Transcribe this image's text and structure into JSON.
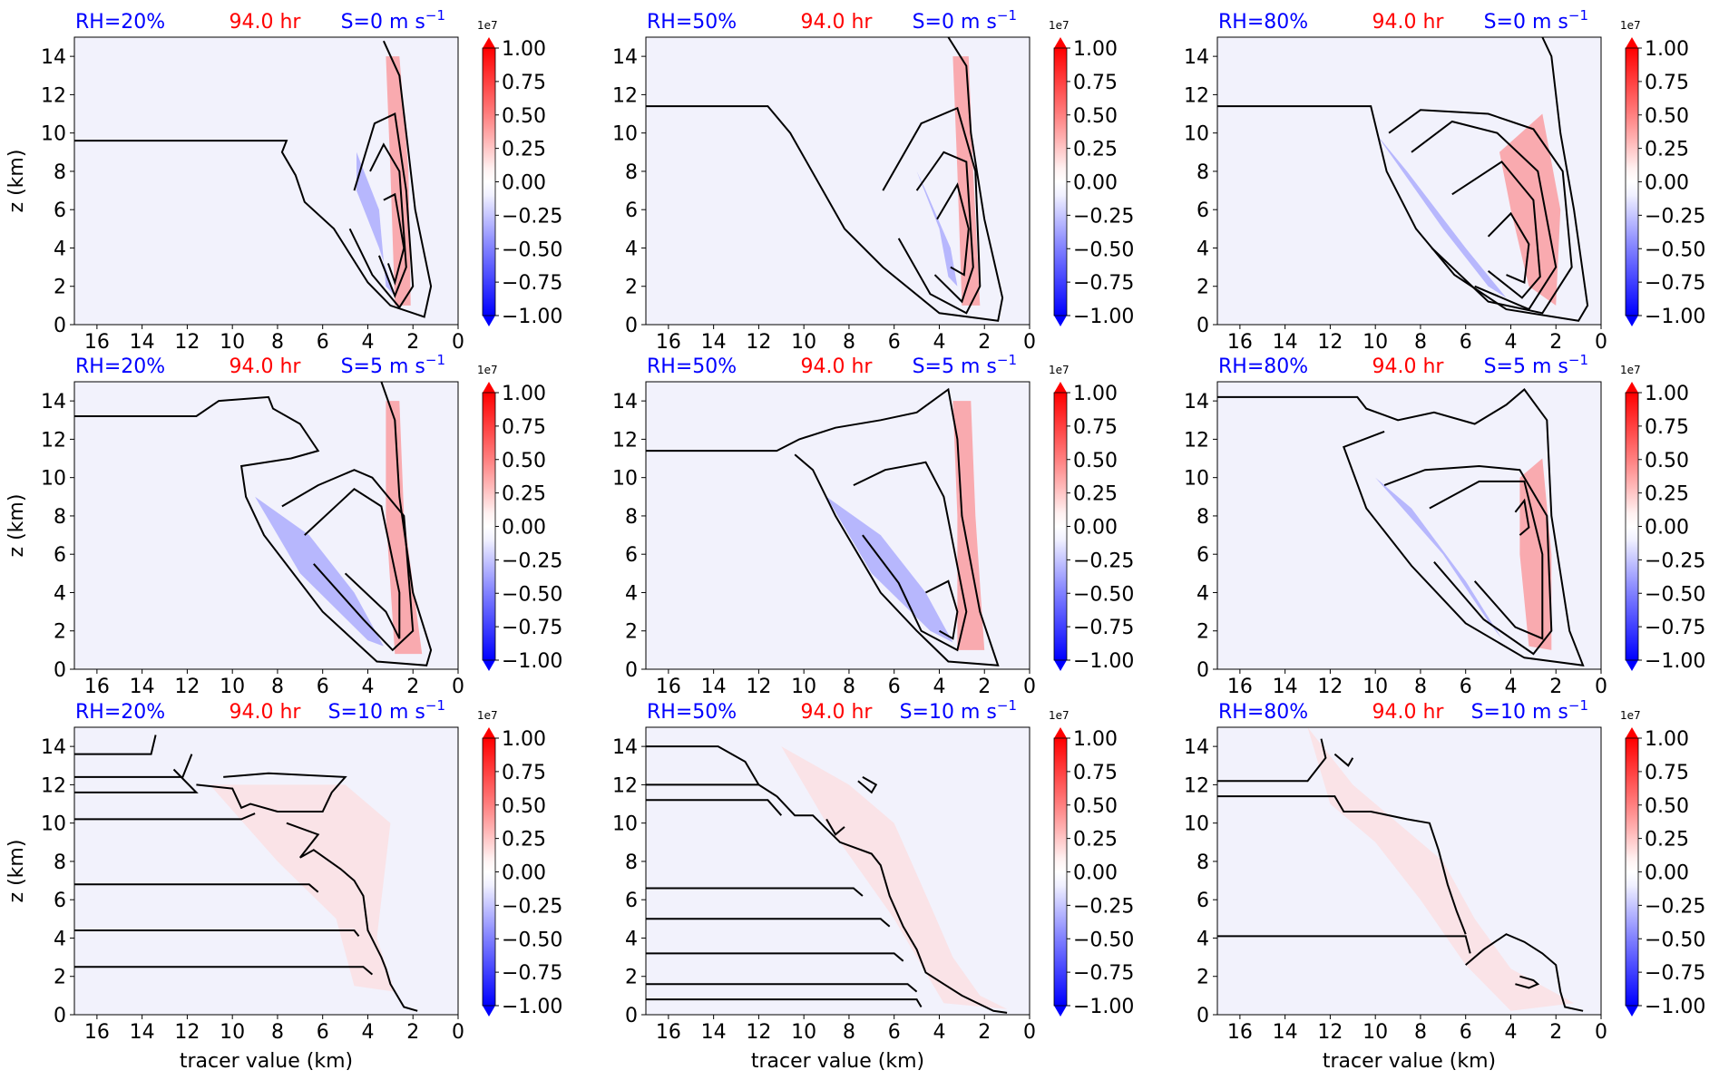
{
  "figure": {
    "colormap": {
      "low": "#0000ff",
      "mid": "#ffffff",
      "high": "#ff0000",
      "background": "#f2f2fc"
    },
    "title_colors": {
      "rh": "#0000ff",
      "time": "#ff0000",
      "shear": "#0000ff"
    },
    "contour_color": "#000000"
  },
  "chart_data": [
    {
      "type": "heatmap",
      "rh_label": "RH=20%",
      "time_label": "94.0 hr",
      "shear_label": "S=0 m s",
      "shear_exp": "−1",
      "xlabel": "",
      "ylabel": "z (km)",
      "xlim": [
        17,
        0
      ],
      "ylim": [
        0,
        15
      ],
      "xticks": [
        "16",
        "14",
        "12",
        "10",
        "8",
        "6",
        "4",
        "2",
        "0"
      ],
      "yticks": [
        "0",
        "2",
        "4",
        "6",
        "8",
        "10",
        "12",
        "14"
      ],
      "colorbar": {
        "scale_label": "1e7",
        "ticks": [
          "1.00",
          "0.75",
          "0.50",
          "0.25",
          "0.00",
          "−0.25",
          "−0.50",
          "−0.75",
          "−1.00"
        ],
        "range": [
          -1.0,
          1.0
        ]
      }
    },
    {
      "type": "heatmap",
      "rh_label": "RH=50%",
      "time_label": "94.0 hr",
      "shear_label": "S=0 m s",
      "shear_exp": "−1",
      "xlabel": "",
      "ylabel": "",
      "xlim": [
        17,
        0
      ],
      "ylim": [
        0,
        15
      ],
      "xticks": [
        "16",
        "14",
        "12",
        "10",
        "8",
        "6",
        "4",
        "2",
        "0"
      ],
      "yticks": [
        "0",
        "2",
        "4",
        "6",
        "8",
        "10",
        "12",
        "14"
      ],
      "colorbar": {
        "scale_label": "1e7",
        "ticks": [
          "1.00",
          "0.75",
          "0.50",
          "0.25",
          "0.00",
          "−0.25",
          "−0.50",
          "−0.75",
          "−1.00"
        ],
        "range": [
          -1.0,
          1.0
        ]
      }
    },
    {
      "type": "heatmap",
      "rh_label": "RH=80%",
      "time_label": "94.0 hr",
      "shear_label": "S=0 m s",
      "shear_exp": "−1",
      "xlabel": "",
      "ylabel": "",
      "xlim": [
        17,
        0
      ],
      "ylim": [
        0,
        15
      ],
      "xticks": [
        "16",
        "14",
        "12",
        "10",
        "8",
        "6",
        "4",
        "2",
        "0"
      ],
      "yticks": [
        "0",
        "2",
        "4",
        "6",
        "8",
        "10",
        "12",
        "14"
      ],
      "colorbar": {
        "scale_label": "1e7",
        "ticks": [
          "1.00",
          "0.75",
          "0.50",
          "0.25",
          "0.00",
          "−0.25",
          "−0.50",
          "−0.75",
          "−1.00"
        ],
        "range": [
          -1.0,
          1.0
        ]
      }
    },
    {
      "type": "heatmap",
      "rh_label": "RH=20%",
      "time_label": "94.0 hr",
      "shear_label": "S=5 m s",
      "shear_exp": "−1",
      "xlabel": "",
      "ylabel": "z (km)",
      "xlim": [
        17,
        0
      ],
      "ylim": [
        0,
        15
      ],
      "xticks": [
        "16",
        "14",
        "12",
        "10",
        "8",
        "6",
        "4",
        "2",
        "0"
      ],
      "yticks": [
        "0",
        "2",
        "4",
        "6",
        "8",
        "10",
        "12",
        "14"
      ],
      "colorbar": {
        "scale_label": "1e7",
        "ticks": [
          "1.00",
          "0.75",
          "0.50",
          "0.25",
          "0.00",
          "−0.25",
          "−0.50",
          "−0.75",
          "−1.00"
        ],
        "range": [
          -1.0,
          1.0
        ]
      }
    },
    {
      "type": "heatmap",
      "rh_label": "RH=50%",
      "time_label": "94.0 hr",
      "shear_label": "S=5 m s",
      "shear_exp": "−1",
      "xlabel": "",
      "ylabel": "",
      "xlim": [
        17,
        0
      ],
      "ylim": [
        0,
        15
      ],
      "xticks": [
        "16",
        "14",
        "12",
        "10",
        "8",
        "6",
        "4",
        "2",
        "0"
      ],
      "yticks": [
        "0",
        "2",
        "4",
        "6",
        "8",
        "10",
        "12",
        "14"
      ],
      "colorbar": {
        "scale_label": "1e7",
        "ticks": [
          "1.00",
          "0.75",
          "0.50",
          "0.25",
          "0.00",
          "−0.25",
          "−0.50",
          "−0.75",
          "−1.00"
        ],
        "range": [
          -1.0,
          1.0
        ]
      }
    },
    {
      "type": "heatmap",
      "rh_label": "RH=80%",
      "time_label": "94.0 hr",
      "shear_label": "S=5 m s",
      "shear_exp": "−1",
      "xlabel": "",
      "ylabel": "",
      "xlim": [
        17,
        0
      ],
      "ylim": [
        0,
        15
      ],
      "xticks": [
        "16",
        "14",
        "12",
        "10",
        "8",
        "6",
        "4",
        "2",
        "0"
      ],
      "yticks": [
        "0",
        "2",
        "4",
        "6",
        "8",
        "10",
        "12",
        "14"
      ],
      "colorbar": {
        "scale_label": "1e7",
        "ticks": [
          "1.00",
          "0.75",
          "0.50",
          "0.25",
          "0.00",
          "−0.25",
          "−0.50",
          "−0.75",
          "−1.00"
        ],
        "range": [
          -1.0,
          1.0
        ]
      }
    },
    {
      "type": "heatmap",
      "rh_label": "RH=20%",
      "time_label": "94.0 hr",
      "shear_label": "S=10 m s",
      "shear_exp": "−1",
      "xlabel": "tracer value (km)",
      "ylabel": "z (km)",
      "xlim": [
        17,
        0
      ],
      "ylim": [
        0,
        15
      ],
      "xticks": [
        "16",
        "14",
        "12",
        "10",
        "8",
        "6",
        "4",
        "2",
        "0"
      ],
      "yticks": [
        "0",
        "2",
        "4",
        "6",
        "8",
        "10",
        "12",
        "14"
      ],
      "colorbar": {
        "scale_label": "1e7",
        "ticks": [
          "1.00",
          "0.75",
          "0.50",
          "0.25",
          "0.00",
          "−0.25",
          "−0.50",
          "−0.75",
          "−1.00"
        ],
        "range": [
          -1.0,
          1.0
        ]
      }
    },
    {
      "type": "heatmap",
      "rh_label": "RH=50%",
      "time_label": "94.0 hr",
      "shear_label": "S=10 m s",
      "shear_exp": "−1",
      "xlabel": "tracer value (km)",
      "ylabel": "",
      "xlim": [
        17,
        0
      ],
      "ylim": [
        0,
        15
      ],
      "xticks": [
        "16",
        "14",
        "12",
        "10",
        "8",
        "6",
        "4",
        "2",
        "0"
      ],
      "yticks": [
        "0",
        "2",
        "4",
        "6",
        "8",
        "10",
        "12",
        "14"
      ],
      "colorbar": {
        "scale_label": "1e7",
        "ticks": [
          "1.00",
          "0.75",
          "0.50",
          "0.25",
          "0.00",
          "−0.25",
          "−0.50",
          "−0.75",
          "−1.00"
        ],
        "range": [
          -1.0,
          1.0
        ]
      }
    },
    {
      "type": "heatmap",
      "rh_label": "RH=80%",
      "time_label": "94.0 hr",
      "shear_label": "S=10 m s",
      "shear_exp": "−1",
      "xlabel": "tracer value (km)",
      "ylabel": "",
      "xlim": [
        17,
        0
      ],
      "ylim": [
        0,
        15
      ],
      "xticks": [
        "16",
        "14",
        "12",
        "10",
        "8",
        "6",
        "4",
        "2",
        "0"
      ],
      "yticks": [
        "0",
        "2",
        "4",
        "6",
        "8",
        "10",
        "12",
        "14"
      ],
      "colorbar": {
        "scale_label": "1e7",
        "ticks": [
          "1.00",
          "0.75",
          "0.50",
          "0.25",
          "0.00",
          "−0.25",
          "−0.50",
          "−0.75",
          "−1.00"
        ],
        "range": [
          -1.0,
          1.0
        ]
      }
    }
  ]
}
